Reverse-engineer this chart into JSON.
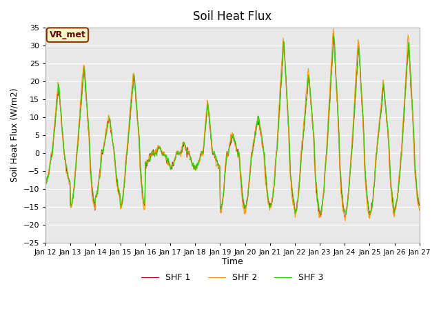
{
  "title": "Soil Heat Flux",
  "ylabel": "Soil Heat Flux (W/m2)",
  "xlabel": "Time",
  "ylim": [
    -25,
    35
  ],
  "yticks": [
    -25,
    -20,
    -15,
    -10,
    -5,
    0,
    5,
    10,
    15,
    20,
    25,
    30,
    35
  ],
  "series_labels": [
    "SHF 1",
    "SHF 2",
    "SHF 3"
  ],
  "series_colors": [
    "#cc0000",
    "#ff9900",
    "#33cc00"
  ],
  "vr_label": "VR_met",
  "bg_color": "#e8e8e8",
  "n_days": 15,
  "start_day": 12,
  "pts_per_day": 48
}
